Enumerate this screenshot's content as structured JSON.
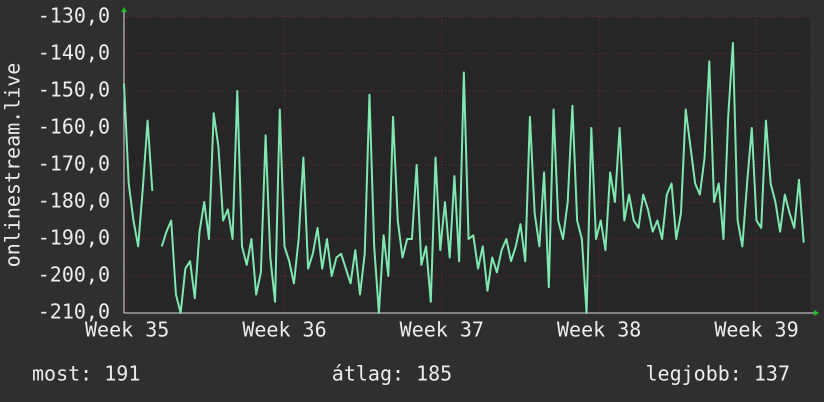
{
  "chart_data": {
    "type": "line",
    "y_label": "onlinestream.live",
    "footer": {
      "left": "most: 191",
      "center": "átlag: 185",
      "right": "legjobb: 137"
    },
    "xlim": [
      34.98,
      39.34
    ],
    "ylim": [
      -210,
      -130
    ],
    "xticks": [
      {
        "value": 35,
        "label": "Week 35"
      },
      {
        "value": 36,
        "label": "Week 36"
      },
      {
        "value": 37,
        "label": "Week 37"
      },
      {
        "value": 38,
        "label": "Week 38"
      },
      {
        "value": 39,
        "label": "Week 39"
      }
    ],
    "yticks": [
      {
        "value": -210,
        "label": "-210,0"
      },
      {
        "value": -200,
        "label": "-200,0"
      },
      {
        "value": -190,
        "label": "-190,0"
      },
      {
        "value": -180,
        "label": "-180,0"
      },
      {
        "value": -170,
        "label": "-170,0"
      },
      {
        "value": -160,
        "label": "-160,0"
      },
      {
        "value": -150,
        "label": "-150,0"
      },
      {
        "value": -140,
        "label": "-140,0"
      },
      {
        "value": -130,
        "label": "-130,0"
      }
    ],
    "grid": true,
    "x": [
      34.98,
      35.01,
      35.04,
      35.07,
      35.1,
      35.13,
      35.16,
      35.19,
      35.22,
      35.25,
      35.28,
      35.31,
      35.34,
      35.37,
      35.4,
      35.43,
      35.46,
      35.49,
      35.52,
      35.55,
      35.58,
      35.61,
      35.64,
      35.67,
      35.7,
      35.73,
      35.76,
      35.79,
      35.82,
      35.85,
      35.88,
      35.91,
      35.94,
      35.97,
      36,
      36.03,
      36.06,
      36.09,
      36.12,
      36.15,
      36.18,
      36.21,
      36.24,
      36.27,
      36.3,
      36.33,
      36.36,
      36.39,
      36.42,
      36.45,
      36.48,
      36.51,
      36.54,
      36.57,
      36.6,
      36.63,
      36.66,
      36.69,
      36.72,
      36.75,
      36.78,
      36.81,
      36.84,
      36.87,
      36.9,
      36.93,
      36.96,
      36.99,
      37.02,
      37.05,
      37.08,
      37.11,
      37.14,
      37.17,
      37.2,
      37.23,
      37.26,
      37.29,
      37.32,
      37.35,
      37.38,
      37.41,
      37.44,
      37.47,
      37.5,
      37.53,
      37.56,
      37.59,
      37.62,
      37.65,
      37.68,
      37.71,
      37.74,
      37.77,
      37.8,
      37.83,
      37.86,
      37.89,
      37.92,
      37.95,
      37.98,
      38.01,
      38.04,
      38.07,
      38.1,
      38.13,
      38.16,
      38.19,
      38.22,
      38.25,
      38.28,
      38.31,
      38.34,
      38.37,
      38.4,
      38.43,
      38.46,
      38.49,
      38.52,
      38.55,
      38.58,
      38.61,
      38.64,
      38.67,
      38.7,
      38.73,
      38.76,
      38.79,
      38.82,
      38.85,
      38.88,
      38.91,
      38.94,
      38.97,
      39,
      39.03,
      39.06,
      39.09,
      39.12,
      39.15,
      39.18,
      39.21,
      39.24,
      39.27,
      39.3
    ],
    "series": [
      {
        "color": "#7ee8b0",
        "values": [
          -148,
          -175,
          -185,
          -192,
          -176,
          -158,
          -177,
          null,
          -192,
          -188,
          -185,
          -205,
          -210,
          -198,
          -196,
          -206,
          -188,
          -180,
          -190,
          -156,
          -165,
          -185,
          -182,
          -190,
          -150,
          -192,
          -197,
          -190,
          -205,
          -199,
          -162,
          -195,
          -207,
          -155,
          -192,
          -196,
          -202,
          -190,
          -168,
          -198,
          -194,
          -187,
          -198,
          -190,
          -200,
          -195,
          -194,
          -198,
          -202,
          -193,
          -205,
          -194,
          -151,
          -192,
          -210,
          -189,
          -200,
          -157,
          -185,
          -195,
          -190,
          -190,
          -170,
          -197,
          -192,
          -207,
          -168,
          -193,
          -180,
          -195,
          -173,
          -196,
          -145,
          -190,
          -189,
          -198,
          -192,
          -204,
          -195,
          -199,
          -193,
          -190,
          -196,
          -192,
          -186,
          -196,
          -157,
          -183,
          -192,
          -172,
          -203,
          -155,
          -185,
          -190,
          -180,
          -154,
          -185,
          -190,
          -210,
          -160,
          -190,
          -185,
          -193,
          -172,
          -180,
          -160,
          -185,
          -178,
          -185,
          -187,
          -178,
          -182,
          -188,
          -185,
          -190,
          -178,
          -175,
          -190,
          -183,
          -155,
          -165,
          -175,
          -178,
          -168,
          -142,
          -180,
          -175,
          -190,
          -157,
          -137,
          -185,
          -192,
          -175,
          -160,
          -185,
          -187,
          -158,
          -175,
          -180,
          -188,
          -178,
          -183,
          -187,
          -174,
          -191
        ]
      }
    ]
  }
}
